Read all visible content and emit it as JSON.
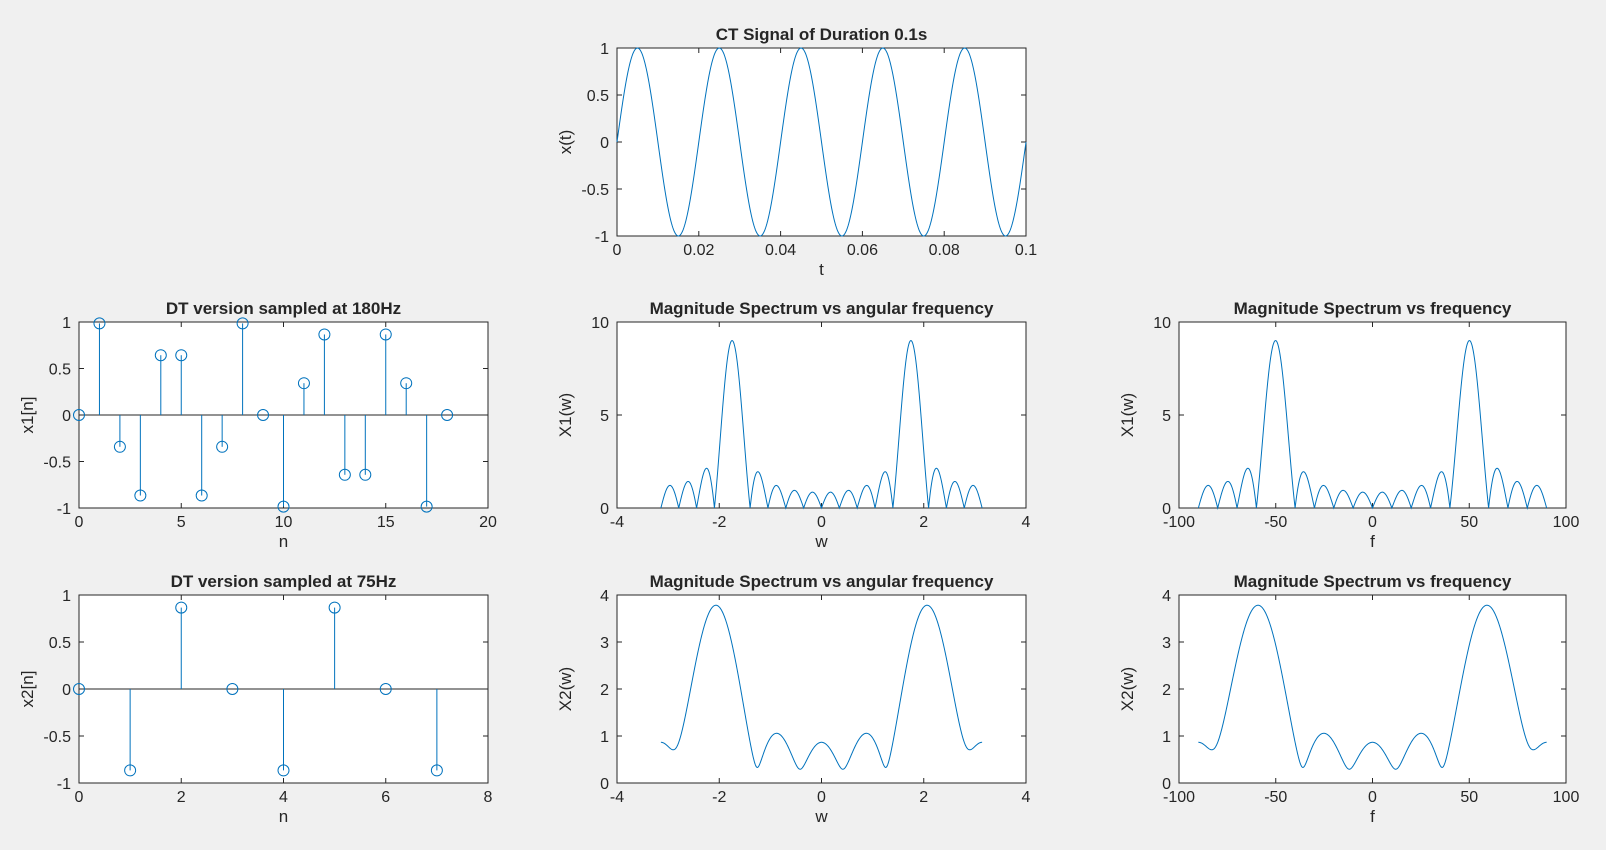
{
  "figure": {
    "background": "#f0f0f0",
    "line_color": "#0072bd",
    "axis_color": "#262626"
  },
  "chart_data": [
    {
      "id": "ct",
      "type": "line",
      "title": "CT Signal of Duration 0.1s",
      "xlabel": "t",
      "ylabel": "x(t)",
      "xlim": [
        0,
        0.1
      ],
      "ylim": [
        -1,
        1
      ],
      "xticks": [
        0,
        0.02,
        0.04,
        0.06,
        0.08,
        0.1
      ],
      "xticklabels": [
        "0",
        "0.02",
        "0.04",
        "0.06",
        "0.08",
        "0.1"
      ],
      "yticks": [
        -1,
        -0.5,
        0,
        0.5,
        1
      ],
      "yticklabels": [
        "-1",
        "-0.5",
        "0",
        "0.5",
        "1"
      ],
      "series": [
        {
          "function": "sin(2*pi*50*t)",
          "x_range": [
            0,
            0.1
          ],
          "samples": 600
        }
      ]
    },
    {
      "id": "dt1",
      "type": "stem",
      "title": "DT version sampled at 180Hz",
      "xlabel": "n",
      "ylabel": "x1[n]",
      "xlim": [
        0,
        20
      ],
      "ylim": [
        -1,
        1
      ],
      "xticks": [
        0,
        5,
        10,
        15,
        20
      ],
      "xticklabels": [
        "0",
        "5",
        "10",
        "15",
        "20"
      ],
      "yticks": [
        -1,
        -0.5,
        0,
        0.5,
        1
      ],
      "yticklabels": [
        "-1",
        "-0.5",
        "0",
        "0.5",
        "1"
      ],
      "x": [
        0,
        1,
        2,
        3,
        4,
        5,
        6,
        7,
        8,
        9,
        10,
        11,
        12,
        13,
        14,
        15,
        16,
        17,
        18
      ],
      "values": [
        0,
        0.985,
        -0.342,
        -0.866,
        0.643,
        0.643,
        -0.866,
        -0.342,
        0.985,
        0,
        -0.985,
        0.342,
        0.866,
        -0.643,
        -0.643,
        0.866,
        0.342,
        -0.985,
        0
      ]
    },
    {
      "id": "mag1w",
      "type": "line",
      "title": "Magnitude Spectrum vs angular frequency",
      "xlabel": "w",
      "ylabel": "X1(w)",
      "xlim": [
        -4,
        4
      ],
      "ylim": [
        0,
        10
      ],
      "xticks": [
        -4,
        -2,
        0,
        2,
        4
      ],
      "xticklabels": [
        "-4",
        "-2",
        "0",
        "2",
        "4"
      ],
      "yticks": [
        0,
        5,
        10
      ],
      "yticklabels": [
        "0",
        "5",
        "10"
      ],
      "series": [
        {
          "function": "|DTFT of x1[n], n=0..18|",
          "x_range": [
            -3.1416,
            3.1416
          ],
          "samples": 900,
          "peaks": [
            [
              -1.745,
              9
            ],
            [
              1.745,
              9
            ]
          ]
        }
      ]
    },
    {
      "id": "mag1f",
      "type": "line",
      "title": "Magnitude Spectrum vs frequency",
      "xlabel": "f",
      "ylabel": "X1(w)",
      "xlim": [
        -100,
        100
      ],
      "ylim": [
        0,
        10
      ],
      "xticks": [
        -100,
        -50,
        0,
        50,
        100
      ],
      "xticklabels": [
        "-100",
        "-50",
        "0",
        "50",
        "100"
      ],
      "yticks": [
        0,
        5,
        10
      ],
      "yticklabels": [
        "0",
        "5",
        "10"
      ],
      "series": [
        {
          "function": "|DTFT of x1[n]| vs f = w*180/(2*pi)",
          "x_range": [
            -90,
            90
          ],
          "samples": 900,
          "peaks": [
            [
              -50,
              9
            ],
            [
              50,
              9
            ]
          ]
        }
      ]
    },
    {
      "id": "dt2",
      "type": "stem",
      "title": "DT version sampled at 75Hz",
      "xlabel": "n",
      "ylabel": "x2[n]",
      "xlim": [
        0,
        8
      ],
      "ylim": [
        -1,
        1
      ],
      "xticks": [
        0,
        2,
        4,
        6,
        8
      ],
      "xticklabels": [
        "0",
        "2",
        "4",
        "6",
        "8"
      ],
      "yticks": [
        -1,
        -0.5,
        0,
        0.5,
        1
      ],
      "yticklabels": [
        "-1",
        "-0.5",
        "0",
        "0.5",
        "1"
      ],
      "x": [
        0,
        1,
        2,
        3,
        4,
        5,
        6,
        7
      ],
      "values": [
        0,
        -0.866,
        0.866,
        0,
        -0.866,
        0.866,
        0,
        -0.866
      ]
    },
    {
      "id": "mag2w",
      "type": "line",
      "title": "Magnitude Spectrum vs angular frequency",
      "xlabel": "w",
      "ylabel": "X2(w)",
      "xlim": [
        -4,
        4
      ],
      "ylim": [
        0,
        4
      ],
      "xticks": [
        -4,
        -2,
        0,
        2,
        4
      ],
      "xticklabels": [
        "-4",
        "-2",
        "0",
        "2",
        "4"
      ],
      "yticks": [
        0,
        1,
        2,
        3,
        4
      ],
      "yticklabels": [
        "0",
        "1",
        "2",
        "3",
        "4"
      ],
      "series": [
        {
          "function": "|DTFT of x2[n], n=0..7|",
          "x_range": [
            -3.1416,
            3.1416
          ],
          "samples": 900,
          "peaks": [
            [
              -2.094,
              3.8
            ],
            [
              2.094,
              3.8
            ]
          ]
        }
      ]
    },
    {
      "id": "mag2f",
      "type": "line",
      "title": "Magnitude Spectrum vs frequency",
      "xlabel": "f",
      "ylabel": "X2(w)",
      "xlim": [
        -100,
        100
      ],
      "ylim": [
        0,
        4
      ],
      "xticks": [
        -100,
        -50,
        0,
        50,
        100
      ],
      "xticklabels": [
        "-100",
        "-50",
        "0",
        "50",
        "100"
      ],
      "yticks": [
        0,
        1,
        2,
        3,
        4
      ],
      "yticklabels": [
        "0",
        "1",
        "2",
        "3",
        "4"
      ],
      "series": [
        {
          "function": "|DTFT of x2[n]| vs f = w*180/(2*pi)",
          "x_range": [
            -90,
            90
          ],
          "samples": 900,
          "peaks": [
            [
              -60,
              3.8
            ],
            [
              60,
              3.8
            ]
          ]
        }
      ]
    }
  ]
}
